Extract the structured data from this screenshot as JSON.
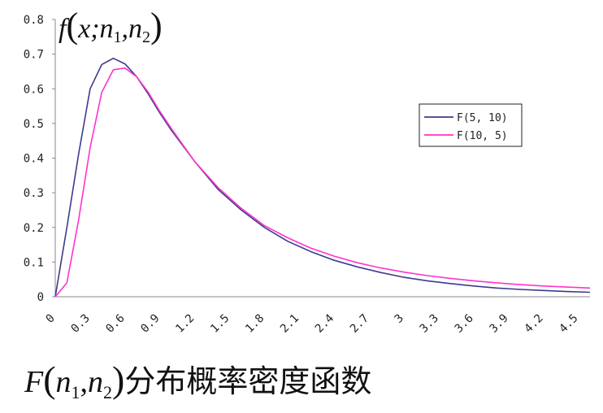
{
  "chart_data": {
    "type": "line",
    "ylabel": {
      "func": "f",
      "args": "x;n",
      "sub1": "1",
      "sep": ",n",
      "sub2": "2"
    },
    "x": [
      0,
      0.1,
      0.2,
      0.3,
      0.4,
      0.5,
      0.6,
      0.7,
      0.8,
      0.9,
      1.0,
      1.2,
      1.4,
      1.6,
      1.8,
      2.0,
      2.2,
      2.4,
      2.6,
      2.8,
      3.0,
      3.2,
      3.4,
      3.6,
      3.8,
      4.0,
      4.2,
      4.4,
      4.6
    ],
    "series": [
      {
        "name": "F(5, 10)",
        "color": "#3c3c8c",
        "values": [
          0,
          0.2,
          0.41,
          0.6,
          0.67,
          0.688,
          0.672,
          0.635,
          0.585,
          0.53,
          0.48,
          0.39,
          0.31,
          0.25,
          0.2,
          0.16,
          0.13,
          0.105,
          0.086,
          0.07,
          0.056,
          0.046,
          0.038,
          0.031,
          0.025,
          0.021,
          0.018,
          0.015,
          0.013
        ]
      },
      {
        "name": "F(10, 5)",
        "color": "#ff33cc",
        "values": [
          0,
          0.04,
          0.22,
          0.43,
          0.59,
          0.655,
          0.66,
          0.635,
          0.59,
          0.535,
          0.485,
          0.39,
          0.315,
          0.255,
          0.205,
          0.17,
          0.14,
          0.117,
          0.098,
          0.083,
          0.071,
          0.061,
          0.053,
          0.046,
          0.04,
          0.035,
          0.031,
          0.028,
          0.025
        ]
      }
    ],
    "yticks": [
      "0",
      "0.1",
      "0.2",
      "0.3",
      "0.4",
      "0.5",
      "0.6",
      "0.7",
      "0.8"
    ],
    "xticks": [
      "0",
      "0.3",
      "0.6",
      "0.9",
      "1.2",
      "1.5",
      "1.8",
      "2.1",
      "2.4",
      "2.7",
      "3",
      "3.3",
      "3.6",
      "3.9",
      "4.2",
      "4.5"
    ],
    "xlim": [
      0,
      4.6
    ],
    "ylim": [
      0,
      0.8
    ],
    "legend_position": "right",
    "caption": {
      "prefix": "F",
      "open": "(",
      "n1": "n",
      "sub1": "1",
      "sep": ",",
      "n2": "n",
      "sub2": "2",
      "close": ")",
      "text": "分布概率密度函数"
    }
  }
}
